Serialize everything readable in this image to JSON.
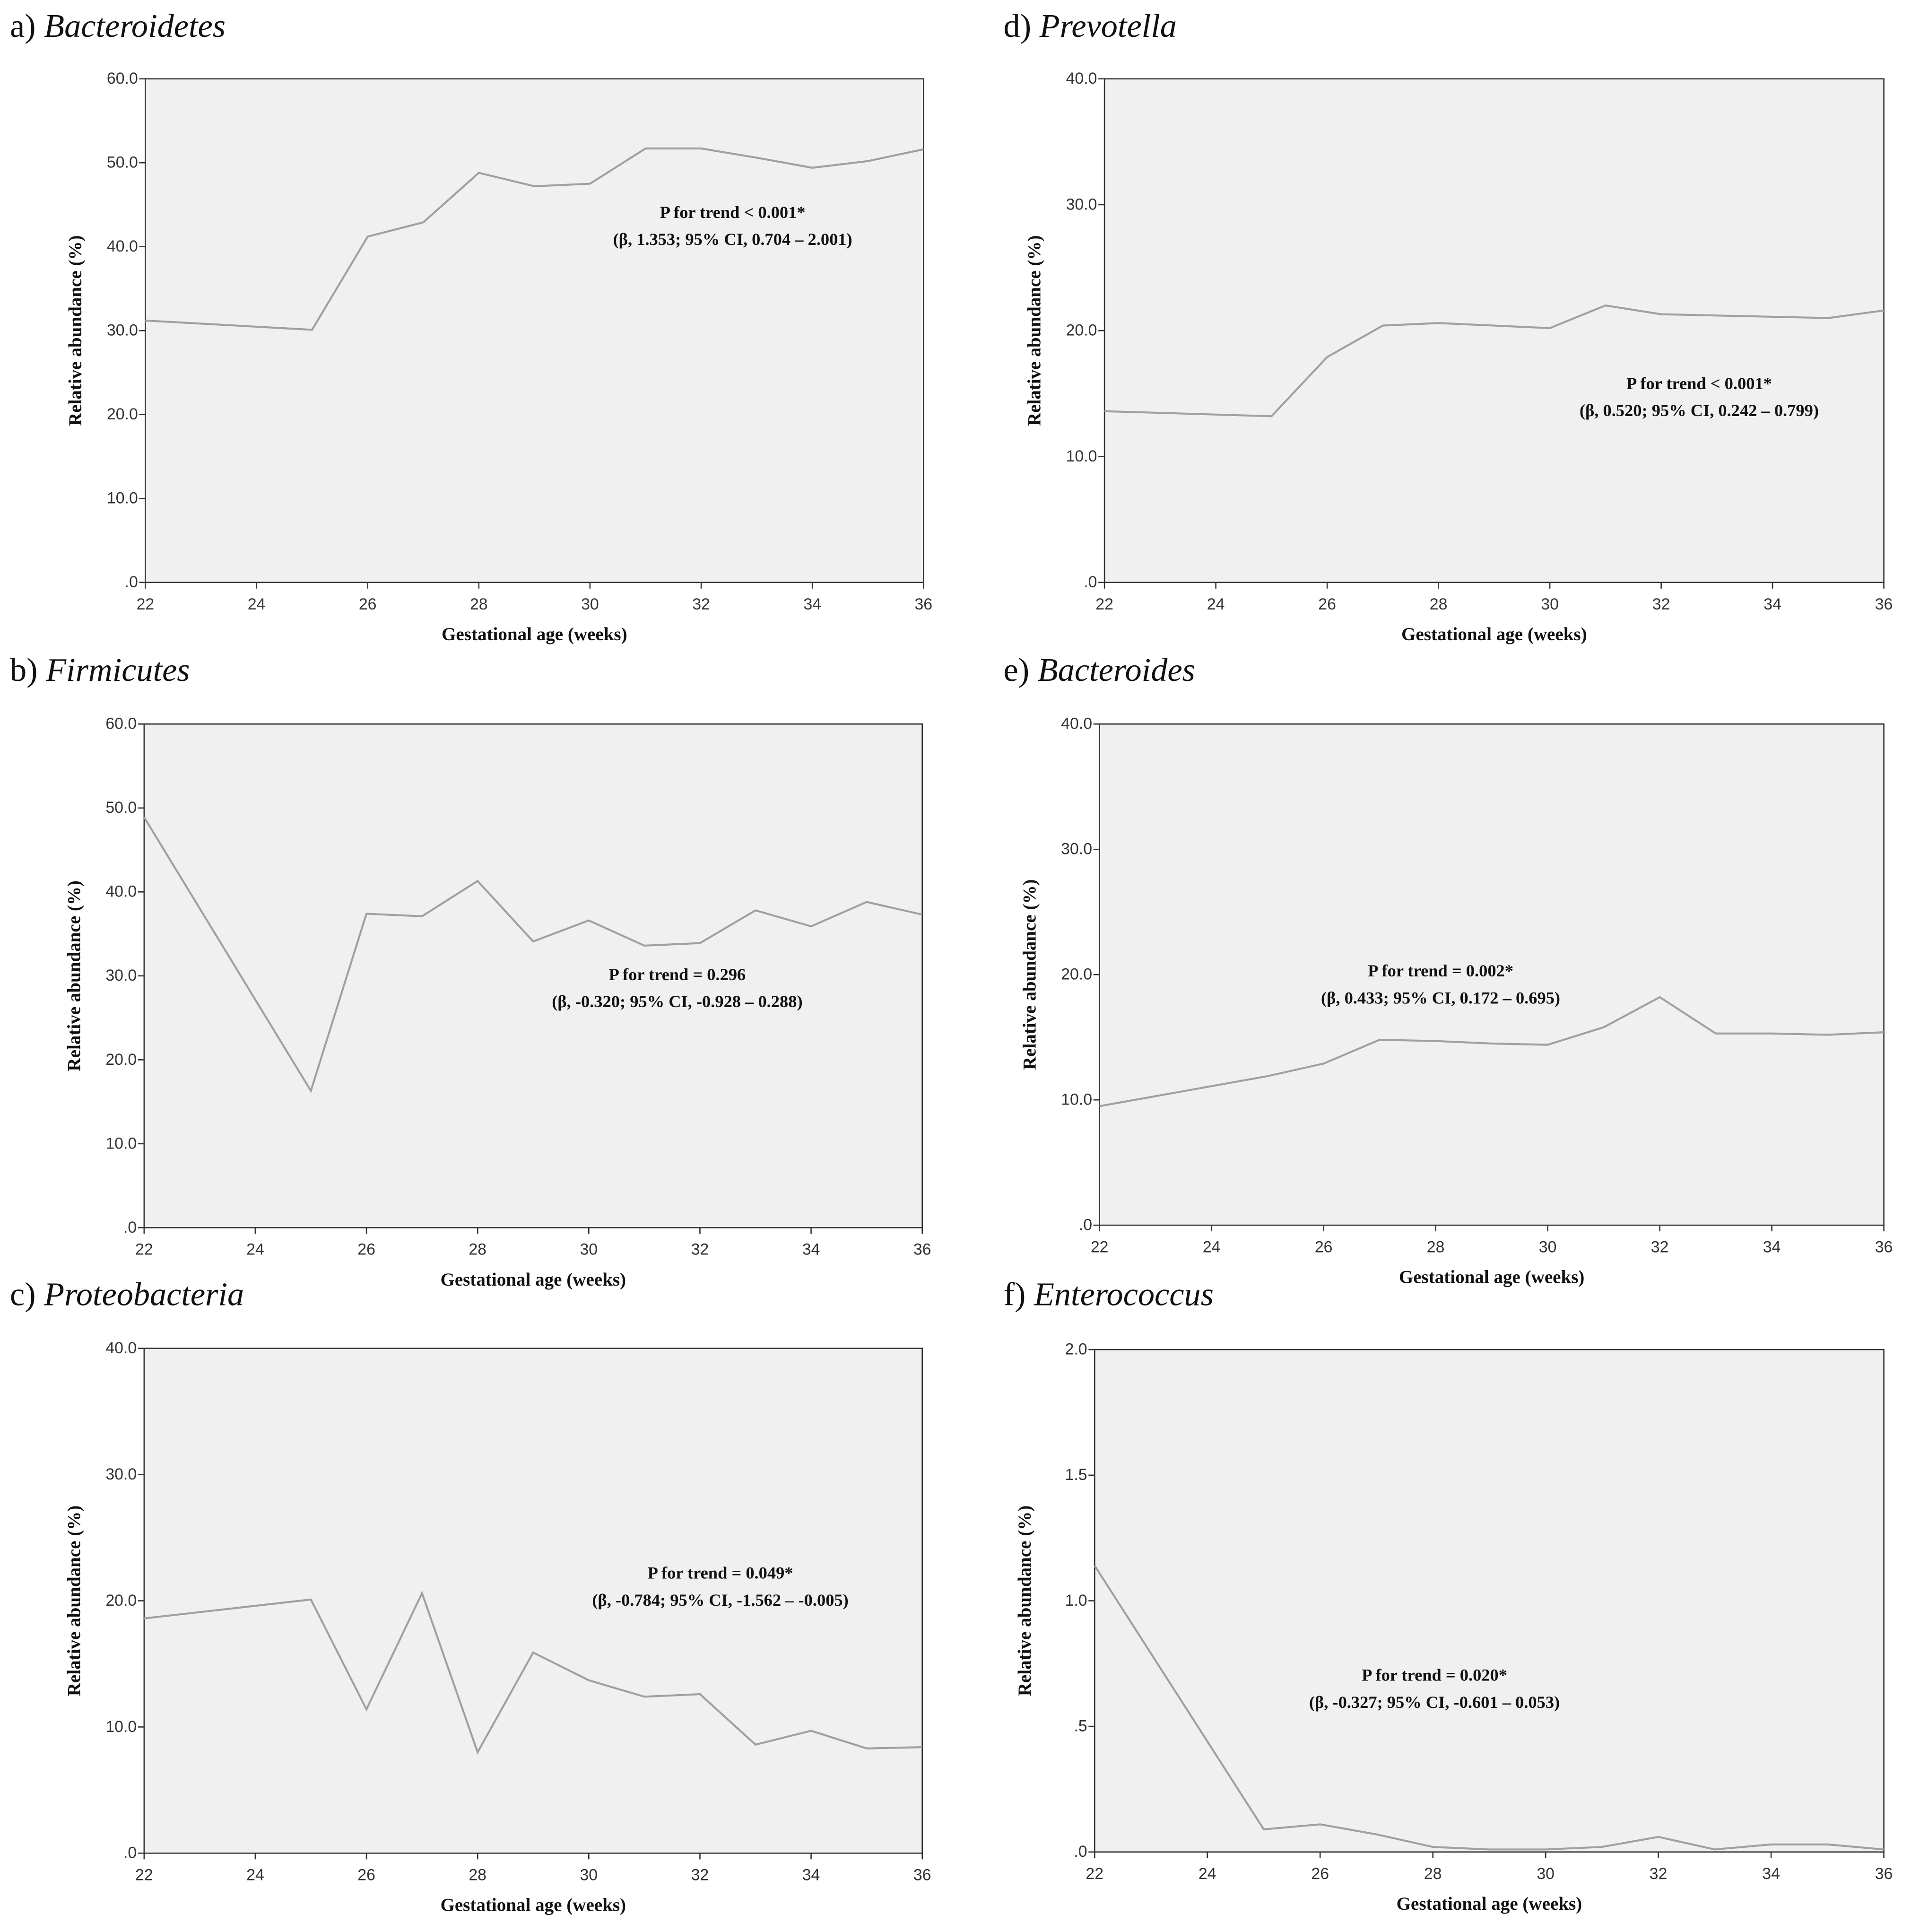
{
  "chart_data": [
    {
      "type": "line",
      "label": "a)",
      "title": "Bacteroidetes",
      "color": "#a0a0a0",
      "background": "#f0f0f0",
      "x_label": "Gestational age (weeks)",
      "y_label": "Relative abundance (%)",
      "annotation": [
        "P for trend < 0.001*",
        "(β, 1.353; 95% CI, 0.704 – 2.001)"
      ],
      "x": [
        22,
        25,
        26,
        27,
        28,
        29,
        30,
        31,
        32,
        33,
        34,
        35,
        36
      ],
      "values": [
        31.2,
        30.1,
        41.2,
        42.9,
        48.8,
        47.2,
        47.5,
        51.7,
        51.7,
        50.6,
        49.4,
        50.2,
        51.6
      ],
      "xlim": [
        22,
        36
      ],
      "xticks": [
        22,
        24,
        26,
        28,
        30,
        32,
        34,
        36
      ],
      "ylim": [
        0,
        60
      ],
      "yticks": [
        {
          "value": 0,
          "label": ".0"
        },
        {
          "value": 10,
          "label": "10.0"
        },
        {
          "value": 20,
          "label": "20.0"
        },
        {
          "value": 30,
          "label": "30.0"
        },
        {
          "value": 40,
          "label": "40.0"
        },
        {
          "value": 50,
          "label": "50.0"
        },
        {
          "value": 60,
          "label": "60.0"
        }
      ]
    },
    {
      "type": "line",
      "label": "b)",
      "title": "Firmicutes",
      "color": "#a0a0a0",
      "background": "#f0f0f0",
      "x_label": "Gestational age (weeks)",
      "y_label": "Relative abundance (%)",
      "annotation": [
        "P for trend = 0.296",
        "(β, -0.320; 95% CI, -0.928 – 0.288)"
      ],
      "x": [
        22,
        25,
        26,
        27,
        28,
        29,
        30,
        31,
        32,
        33,
        34,
        35,
        36
      ],
      "values": [
        48.9,
        16.3,
        37.4,
        37.1,
        41.3,
        34.1,
        36.6,
        33.6,
        33.9,
        37.8,
        35.9,
        38.8,
        37.3
      ],
      "xlim": [
        22,
        36
      ],
      "xticks": [
        22,
        24,
        26,
        28,
        30,
        32,
        34,
        36
      ],
      "ylim": [
        0,
        60
      ],
      "yticks": [
        {
          "value": 0,
          "label": ".0"
        },
        {
          "value": 10,
          "label": "10.0"
        },
        {
          "value": 20,
          "label": "20.0"
        },
        {
          "value": 30,
          "label": "30.0"
        },
        {
          "value": 40,
          "label": "40.0"
        },
        {
          "value": 50,
          "label": "50.0"
        },
        {
          "value": 60,
          "label": "60.0"
        }
      ]
    },
    {
      "type": "line",
      "label": "c)",
      "title": "Proteobacteria",
      "color": "#a0a0a0",
      "background": "#f0f0f0",
      "x_label": "Gestational age (weeks)",
      "y_label": "Relative abundance (%)",
      "annotation": [
        "P for trend = 0.049*",
        "(β, -0.784; 95% CI, -1.562 – -0.005)"
      ],
      "x": [
        22,
        25,
        26,
        27,
        28,
        29,
        30,
        31,
        32,
        33,
        34,
        35,
        36
      ],
      "values": [
        18.6,
        20.1,
        11.4,
        20.6,
        8.0,
        15.9,
        13.7,
        12.4,
        12.6,
        8.6,
        9.7,
        8.3,
        8.4
      ],
      "xlim": [
        22,
        36
      ],
      "xticks": [
        22,
        24,
        26,
        28,
        30,
        32,
        34,
        36
      ],
      "ylim": [
        0,
        40
      ],
      "yticks": [
        {
          "value": 0,
          "label": ".0"
        },
        {
          "value": 10,
          "label": "10.0"
        },
        {
          "value": 20,
          "label": "20.0"
        },
        {
          "value": 30,
          "label": "30.0"
        },
        {
          "value": 40,
          "label": "40.0"
        }
      ]
    },
    {
      "type": "line",
      "label": "d)",
      "title": "Prevotella",
      "color": "#a0a0a0",
      "background": "#f0f0f0",
      "x_label": "Gestational age (weeks)",
      "y_label": "Relative abundance (%)",
      "annotation": [
        "P for trend < 0.001*",
        "(β, 0.520; 95% CI, 0.242 – 0.799)"
      ],
      "x": [
        22,
        25,
        26,
        27,
        28,
        29,
        30,
        31,
        32,
        33,
        34,
        35,
        36
      ],
      "values": [
        13.6,
        13.2,
        17.9,
        20.4,
        20.6,
        20.4,
        20.2,
        22.0,
        21.3,
        21.2,
        21.1,
        21.0,
        21.6
      ],
      "xlim": [
        22,
        36
      ],
      "xticks": [
        22,
        24,
        26,
        28,
        30,
        32,
        34,
        36
      ],
      "ylim": [
        0,
        40
      ],
      "yticks": [
        {
          "value": 0,
          "label": ".0"
        },
        {
          "value": 10,
          "label": "10.0"
        },
        {
          "value": 20,
          "label": "20.0"
        },
        {
          "value": 30,
          "label": "30.0"
        },
        {
          "value": 40,
          "label": "40.0"
        }
      ]
    },
    {
      "type": "line",
      "label": "e)",
      "title": "Bacteroides",
      "color": "#a0a0a0",
      "background": "#f0f0f0",
      "x_label": "Gestational age (weeks)",
      "y_label": "Relative abundance (%)",
      "annotation": [
        "P for trend = 0.002*",
        "(β, 0.433; 95% CI, 0.172 – 0.695)"
      ],
      "x": [
        22,
        25,
        26,
        27,
        28,
        29,
        30,
        31,
        32,
        33,
        34,
        35,
        36
      ],
      "values": [
        9.5,
        11.9,
        12.9,
        14.8,
        14.7,
        14.5,
        14.4,
        15.8,
        18.2,
        15.3,
        15.3,
        15.2,
        15.4
      ],
      "xlim": [
        22,
        36
      ],
      "xticks": [
        22,
        24,
        26,
        28,
        30,
        32,
        34,
        36
      ],
      "ylim": [
        0,
        40
      ],
      "yticks": [
        {
          "value": 0,
          "label": ".0"
        },
        {
          "value": 10,
          "label": "10.0"
        },
        {
          "value": 20,
          "label": "20.0"
        },
        {
          "value": 30,
          "label": "30.0"
        },
        {
          "value": 40,
          "label": "40.0"
        }
      ]
    },
    {
      "type": "line",
      "label": "f)",
      "title": "Enterococcus",
      "color": "#a0a0a0",
      "background": "#f0f0f0",
      "x_label": "Gestational age (weeks)",
      "y_label": "Relative abundance (%)",
      "annotation": [
        "P for trend = 0.020*",
        "(β, -0.327; 95% CI, -0.601 – 0.053)"
      ],
      "x": [
        22,
        25,
        26,
        27,
        28,
        29,
        30,
        31,
        32,
        33,
        34,
        35,
        36
      ],
      "values": [
        1.14,
        0.09,
        0.11,
        0.07,
        0.02,
        0.01,
        0.01,
        0.02,
        0.06,
        0.01,
        0.03,
        0.03,
        0.01
      ],
      "xlim": [
        22,
        36
      ],
      "xticks": [
        22,
        24,
        26,
        28,
        30,
        32,
        34,
        36
      ],
      "ylim": [
        0,
        2
      ],
      "yticks": [
        {
          "value": 0,
          "label": ".0"
        },
        {
          "value": 0.5,
          "label": ".5"
        },
        {
          "value": 1,
          "label": "1.0"
        },
        {
          "value": 1.5,
          "label": "1.5"
        },
        {
          "value": 2,
          "label": "2.0"
        }
      ]
    }
  ]
}
